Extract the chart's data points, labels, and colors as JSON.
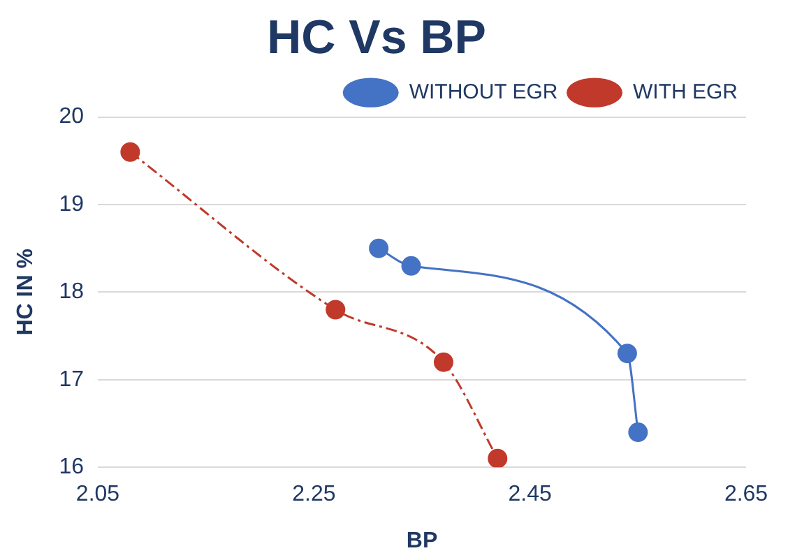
{
  "chart_data": {
    "type": "line",
    "title": "HC Vs BP",
    "xlabel": "BP",
    "ylabel": "HC IN %",
    "xlim": [
      2.05,
      2.65
    ],
    "xticks": [
      2.05,
      2.25,
      2.45,
      2.65
    ],
    "ylim": [
      16,
      20
    ],
    "yticks": [
      16,
      17,
      18,
      19,
      20
    ],
    "grid": "y",
    "legend": "top right",
    "marker": "circle",
    "series": [
      {
        "name": "WITHOUT EGR",
        "color": "#4472c4",
        "line_style": "solid",
        "x": [
          2.31,
          2.34,
          2.54,
          2.55
        ],
        "values": [
          18.5,
          18.3,
          17.3,
          16.4
        ]
      },
      {
        "name": "WITH EGR",
        "color": "#c0392b",
        "line_style": "dashed",
        "x": [
          2.08,
          2.27,
          2.37,
          2.42
        ],
        "values": [
          19.6,
          17.8,
          17.2,
          16.1
        ]
      }
    ]
  }
}
